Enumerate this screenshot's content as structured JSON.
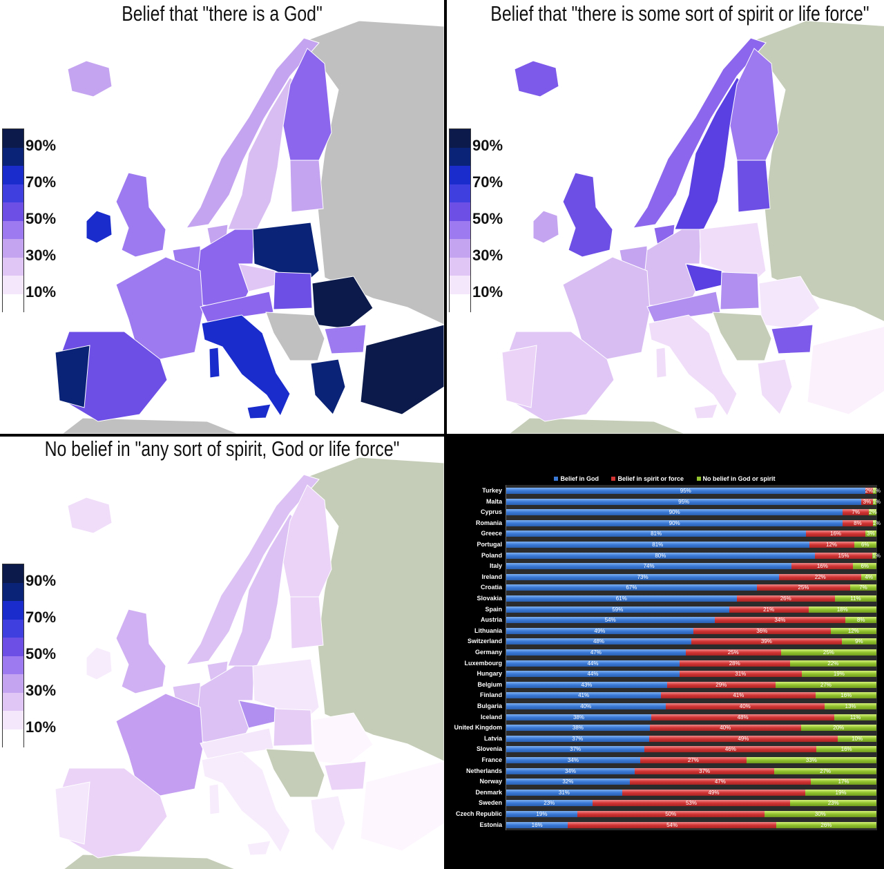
{
  "maps": [
    {
      "title": "Belief that \"there is a God\"",
      "nodata": "#c0c0c0",
      "fills": {
        "iceland": "#c4a3f0",
        "ireland": "#1a2ccc",
        "uk": "#9e7af0",
        "norway": "#c4a3f0",
        "sweden": "#d8bdf3",
        "finland": "#8c66ec",
        "baltics": "#c4a3f0",
        "denmark": "#c4a3f0",
        "germany": "#8c66ec",
        "poland": "#0a2377",
        "czech": "#e0c6f5",
        "france": "#9e7af0",
        "benelux": "#9e7af0",
        "alps": "#8c66ec",
        "hungary": "#6e4fe6",
        "romania": "#0b1a4a",
        "balkans": "#c0c0c0",
        "bulgaria": "#9e7af0",
        "greece": "#0a2377",
        "turkey": "#0b1a4a",
        "italy": "#1a2ccc",
        "sardinia": "#1a2ccc",
        "sicily": "#1a2ccc",
        "iberia": "#6e4fe6",
        "portugal": "#0a2377",
        "east": "#c0c0c0",
        "africa": "#c0c0c0"
      }
    },
    {
      "title": "Belief that \"there is some sort of spirit or life force\"",
      "nodata": "#c5cdb8",
      "fills": {
        "iceland": "#7e5aea",
        "ireland": "#c4a3f0",
        "uk": "#6e4fe6",
        "norway": "#8c66ec",
        "sweden": "#5a3fe2",
        "finland": "#9e7af0",
        "baltics": "#6e4fe6",
        "denmark": "#8c66ec",
        "germany": "#d8bdf3",
        "poland": "#f0ddf9",
        "czech": "#5a3fe2",
        "france": "#d8bdf3",
        "benelux": "#c4a3f0",
        "alps": "#b08ff0",
        "hungary": "#b08ff0",
        "romania": "#f4e6fb",
        "balkans": "#c5cdb8",
        "bulgaria": "#7e5aea",
        "greece": "#f0ddf9",
        "turkey": "#fbf1fd",
        "italy": "#f0ddf9",
        "sardinia": "#f0ddf9",
        "sicily": "#f0ddf9",
        "iberia": "#e0c6f5",
        "portugal": "#ead3f7",
        "east": "#c5cdb8",
        "africa": "#c5cdb8"
      }
    },
    {
      "title": "No belief in \"any sort of spirit, God or life force\"",
      "nodata": "#c5cdb8",
      "fills": {
        "iceland": "#f0ddf9",
        "ireland": "#f7ecfc",
        "uk": "#d0b0f2",
        "norway": "#dcc2f4",
        "sweden": "#dcc2f4",
        "finland": "#ead3f7",
        "baltics": "#ead3f7",
        "denmark": "#dcc2f4",
        "germany": "#dcc2f4",
        "poland": "#f4e6fb",
        "czech": "#b08ff0",
        "france": "#c49ef0",
        "benelux": "#dcc2f4",
        "alps": "#f4e6fb",
        "hungary": "#e6cdf6",
        "romania": "#fdf6ff",
        "balkans": "#c5cdb8",
        "bulgaria": "#ead3f7",
        "greece": "#f7ecfc",
        "turkey": "#fdf6ff",
        "italy": "#f7ecfc",
        "sardinia": "#f7ecfc",
        "sicily": "#f7ecfc",
        "iberia": "#ead3f7",
        "portugal": "#f4e6fb",
        "east": "#c5cdb8",
        "africa": "#c5cdb8"
      }
    }
  ],
  "legend": {
    "labels": [
      "90%",
      "70%",
      "50%",
      "30%",
      "10%"
    ],
    "colors": [
      "#0b1a4a",
      "#0a2377",
      "#1a2ccc",
      "#3f3fe0",
      "#6e4fe6",
      "#9e7af0",
      "#c4a3f0",
      "#e0c6f5",
      "#f4e6fb",
      "#ffffff"
    ]
  },
  "chart_data": {
    "type": "bar",
    "stacked": true,
    "orientation": "horizontal",
    "series_names": [
      "Belief in God",
      "Belief in spirit or force",
      "No belief in God or spirit"
    ],
    "colors": [
      "#3a79d6",
      "#d23434",
      "#92c22e"
    ],
    "legend_position": "top",
    "categories": [
      "Turkey",
      "Malta",
      "Cyprus",
      "Romania",
      "Greece",
      "Portugal",
      "Poland",
      "Italy",
      "Ireland",
      "Croatia",
      "Slovakia",
      "Spain",
      "Austria",
      "Lithuania",
      "Switzerland",
      "Germany",
      "Luxembourg",
      "Hungary",
      "Belgium",
      "Finland",
      "Bulgaria",
      "Iceland",
      "United Kingdom",
      "Latvia",
      "Slovenia",
      "France",
      "Netherlands",
      "Norway",
      "Denmark",
      "Sweden",
      "Czech Republic",
      "Estonia"
    ],
    "series": [
      {
        "name": "Belief in God",
        "values": [
          95,
          95,
          90,
          90,
          81,
          81,
          80,
          74,
          73,
          67,
          61,
          59,
          54,
          49,
          48,
          47,
          44,
          44,
          43,
          41,
          40,
          38,
          38,
          37,
          37,
          34,
          34,
          32,
          31,
          23,
          19,
          16
        ]
      },
      {
        "name": "Belief in spirit or force",
        "values": [
          2,
          3,
          7,
          8,
          16,
          12,
          15,
          16,
          22,
          25,
          26,
          21,
          34,
          36,
          39,
          25,
          28,
          31,
          29,
          41,
          40,
          48,
          40,
          49,
          46,
          27,
          37,
          47,
          49,
          53,
          50,
          54
        ]
      },
      {
        "name": "No belief in God or spirit",
        "values": [
          1,
          1,
          2,
          1,
          3,
          6,
          1,
          6,
          4,
          7,
          11,
          18,
          8,
          12,
          9,
          25,
          22,
          19,
          27,
          16,
          13,
          11,
          20,
          10,
          16,
          33,
          27,
          17,
          19,
          23,
          30,
          26
        ]
      }
    ],
    "unit": "%"
  }
}
